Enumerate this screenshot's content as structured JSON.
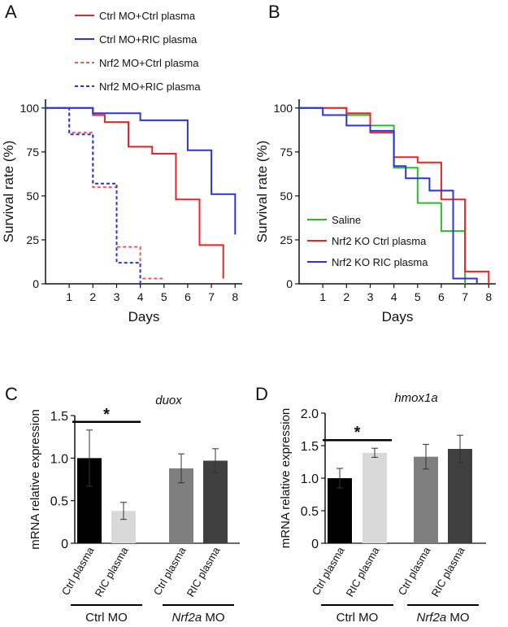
{
  "chart_data": [
    {
      "panel": "A",
      "type": "line",
      "xlabel": "Days",
      "ylabel": "Survival rate (%)",
      "xlim": [
        0,
        8.3
      ],
      "ylim": [
        0,
        105
      ],
      "xticks": [
        "1",
        "2",
        "3",
        "4",
        "5",
        "6",
        "7",
        "8"
      ],
      "yticks": [
        "0",
        "25",
        "50",
        "75",
        "100"
      ],
      "legend_position": "top",
      "series": [
        {
          "name": "Ctrl MO+Ctrl plasma",
          "color": "#e8262a",
          "dash": false,
          "points": [
            [
              0,
              100
            ],
            [
              2,
              100
            ],
            [
              2,
              96
            ],
            [
              2.5,
              96
            ],
            [
              2.5,
              92
            ],
            [
              3.5,
              92
            ],
            [
              3.5,
              78
            ],
            [
              4.5,
              78
            ],
            [
              4.5,
              74
            ],
            [
              5.5,
              74
            ],
            [
              5.5,
              48
            ],
            [
              6.5,
              48
            ],
            [
              6.5,
              22
            ],
            [
              7.5,
              22
            ],
            [
              7.5,
              3
            ]
          ]
        },
        {
          "name": "Ctrl MO+RIC plasma",
          "color": "#2b35d6",
          "dash": false,
          "points": [
            [
              0,
              100
            ],
            [
              2,
              100
            ],
            [
              2,
              97
            ],
            [
              4,
              97
            ],
            [
              4,
              93
            ],
            [
              6,
              93
            ],
            [
              6,
              76
            ],
            [
              7,
              76
            ],
            [
              7,
              51
            ],
            [
              8,
              51
            ],
            [
              8,
              28
            ]
          ]
        },
        {
          "name": "Nrf2 MO+Ctrl plasma",
          "color": "#f2585b",
          "dash": true,
          "points": [
            [
              0,
              100
            ],
            [
              1,
              100
            ],
            [
              1,
              86
            ],
            [
              2,
              86
            ],
            [
              2,
              55
            ],
            [
              3,
              55
            ],
            [
              3,
              21
            ],
            [
              4,
              21
            ],
            [
              4,
              3
            ],
            [
              5,
              3
            ]
          ]
        },
        {
          "name": "Nrf2 MO+RIC plasma",
          "color": "#2b35d6",
          "dash": true,
          "points": [
            [
              0,
              100
            ],
            [
              1,
              100
            ],
            [
              1,
              85
            ],
            [
              2,
              85
            ],
            [
              2,
              57
            ],
            [
              3,
              57
            ],
            [
              3,
              12
            ],
            [
              4,
              12
            ],
            [
              4,
              0
            ]
          ]
        }
      ]
    },
    {
      "panel": "B",
      "type": "line",
      "xlabel": "Days",
      "ylabel": "Survival rate (%)",
      "xlim": [
        0,
        8.3
      ],
      "ylim": [
        0,
        105
      ],
      "xticks": [
        "1",
        "2",
        "3",
        "4",
        "5",
        "6",
        "7",
        "8"
      ],
      "yticks": [
        "0",
        "25",
        "50",
        "75",
        "100"
      ],
      "legend_position": "bottom-left",
      "series": [
        {
          "name": "Saline",
          "color": "#2dbb2d",
          "dash": false,
          "points": [
            [
              0,
              100
            ],
            [
              2,
              100
            ],
            [
              2,
              96
            ],
            [
              3,
              96
            ],
            [
              3,
              90
            ],
            [
              4,
              90
            ],
            [
              4,
              66
            ],
            [
              5,
              66
            ],
            [
              5,
              46
            ],
            [
              6,
              46
            ],
            [
              6,
              30
            ],
            [
              7,
              30
            ],
            [
              7,
              0
            ]
          ]
        },
        {
          "name": "Nrf2 KO Ctrl plasma",
          "color": "#e8262a",
          "dash": false,
          "points": [
            [
              0,
              100
            ],
            [
              2,
              100
            ],
            [
              2,
              97
            ],
            [
              3,
              97
            ],
            [
              3,
              86
            ],
            [
              4,
              86
            ],
            [
              4,
              72
            ],
            [
              5,
              72
            ],
            [
              5,
              69
            ],
            [
              6,
              69
            ],
            [
              6,
              48
            ],
            [
              7,
              48
            ],
            [
              7,
              7
            ],
            [
              8,
              7
            ],
            [
              8,
              0
            ]
          ]
        },
        {
          "name": "Nrf2 KO RIC plasma",
          "color": "#2b35d6",
          "dash": false,
          "points": [
            [
              0,
              100
            ],
            [
              1,
              100
            ],
            [
              1,
              96
            ],
            [
              2,
              96
            ],
            [
              2,
              90
            ],
            [
              3,
              90
            ],
            [
              3,
              87
            ],
            [
              4,
              87
            ],
            [
              4,
              67
            ],
            [
              4.5,
              67
            ],
            [
              4.5,
              60
            ],
            [
              5.5,
              60
            ],
            [
              5.5,
              53
            ],
            [
              6.5,
              53
            ],
            [
              6.5,
              3
            ],
            [
              7.5,
              3
            ],
            [
              7.5,
              0
            ]
          ]
        }
      ]
    },
    {
      "panel": "C",
      "type": "bar",
      "title": "duox",
      "ylabel": "mRNA relative expression",
      "ylim": [
        0,
        1.5
      ],
      "yticks": [
        "0",
        "0.5",
        "1.0",
        "1.5"
      ],
      "categories": [
        "Ctrl plasma",
        "RIC plasma",
        "Ctrl plasma",
        "RIC plasma"
      ],
      "values": [
        1.0,
        0.38,
        0.88,
        0.97
      ],
      "errors": [
        0.33,
        0.1,
        0.17,
        0.14
      ],
      "colors": [
        "#000000",
        "#d9d9d9",
        "#7f7f7f",
        "#3f3f3f"
      ],
      "groups": [
        {
          "label": "Ctrl MO",
          "italic_part": ""
        },
        {
          "label": " MO",
          "italic_part": "Nrf2a"
        }
      ],
      "significance": [
        {
          "between": [
            0,
            1
          ],
          "label": "*"
        }
      ]
    },
    {
      "panel": "D",
      "type": "bar",
      "title": "hmox1a",
      "ylabel": "mRNA relative expression",
      "ylim": [
        0,
        2.0
      ],
      "yticks": [
        "0",
        "0.5",
        "1.0",
        "1.5",
        "2.0"
      ],
      "categories": [
        "Ctrl plasma",
        "RIC plasma",
        "Ctrl plasma",
        "RIC plasma"
      ],
      "values": [
        1.0,
        1.39,
        1.33,
        1.45
      ],
      "errors": [
        0.15,
        0.07,
        0.19,
        0.21
      ],
      "colors": [
        "#000000",
        "#d9d9d9",
        "#7f7f7f",
        "#3f3f3f"
      ],
      "groups": [
        {
          "label": "Ctrl MO",
          "italic_part": ""
        },
        {
          "label": " MO",
          "italic_part": "Nrf2a"
        }
      ],
      "significance": [
        {
          "between": [
            0,
            1
          ],
          "label": "*"
        }
      ]
    }
  ]
}
